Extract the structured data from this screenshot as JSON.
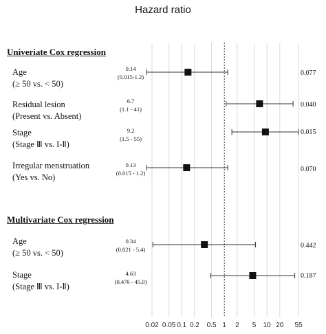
{
  "chart_data": {
    "type": "forest",
    "title": "Hazard ratio",
    "x_scale": "log",
    "xlim": [
      0.02,
      55
    ],
    "x_ticks": [
      0.02,
      0.05,
      0.1,
      0.2,
      0.5,
      1,
      2,
      5,
      10,
      20,
      55
    ],
    "x_tick_labels": [
      "0.02",
      "0.05",
      "0.1",
      "0.2",
      "0.5",
      "1",
      "2",
      "5",
      "10",
      "20",
      "55"
    ],
    "reference_line": 1,
    "grid": true,
    "sections": [
      {
        "name": "Univeriate Cox regression",
        "rows": [
          {
            "label1": "Age",
            "label2": "(≥ 50 vs. < 50)",
            "hr": 0.14,
            "lo": 0.015,
            "hi": 1.2,
            "hr_text": "0.14",
            "ci_text": "(0.015-1.2)",
            "p_text": "0.077"
          },
          {
            "label1": "Residual lesion",
            "label2": "(Present vs. Absent)",
            "hr": 6.7,
            "lo": 1.1,
            "hi": 41,
            "hr_text": "6.7",
            "ci_text": "(1.1 - 41)",
            "p_text": "0.040"
          },
          {
            "label1": "Stage",
            "label2": "(Stage Ⅲ vs. I-Ⅱ)",
            "hr": 9.2,
            "lo": 1.5,
            "hi": 55,
            "hr_text": "9.2",
            "ci_text": "(1.5 - 55)",
            "p_text": "0.015"
          },
          {
            "label1": "Irregular menstruation",
            "label2": "(Yes vs. No)",
            "hr": 0.13,
            "lo": 0.015,
            "hi": 1.2,
            "hr_text": "0.13",
            "ci_text": "(0.015 - 1.2)",
            "p_text": "0.070"
          }
        ]
      },
      {
        "name": "Multivariate Cox regression",
        "rows": [
          {
            "label1": "Age",
            "label2": "(≥ 50 vs. < 50)",
            "hr": 0.34,
            "lo": 0.021,
            "hi": 5.4,
            "hr_text": "0.34",
            "ci_text": "(0.021 - 5.4)",
            "p_text": "0.442"
          },
          {
            "label1": "Stage",
            "label2": "(Stage Ⅲ vs. I-Ⅱ)",
            "hr": 4.63,
            "lo": 0.476,
            "hi": 45.0,
            "hr_text": "4.63",
            "ci_text": "(0.476 - 45.0)",
            "p_text": "0.187"
          }
        ]
      }
    ]
  }
}
